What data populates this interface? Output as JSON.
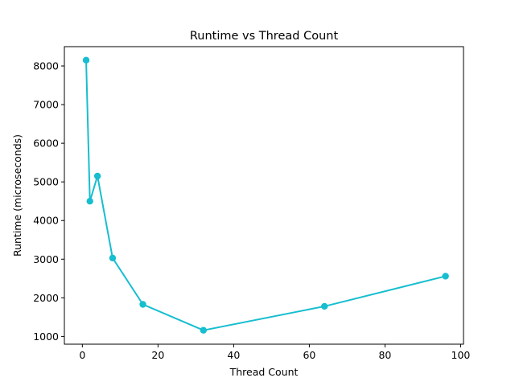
{
  "chart_data": {
    "type": "line",
    "title": "Runtime vs Thread Count",
    "xlabel": "Thread Count",
    "ylabel": "Runtime (microseconds)",
    "xlim": [
      -4.75,
      100.75
    ],
    "ylim": [
      800,
      8500
    ],
    "xticks": [
      0,
      20,
      40,
      60,
      80,
      100
    ],
    "yticks": [
      1000,
      2000,
      3000,
      4000,
      5000,
      6000,
      7000,
      8000
    ],
    "grid": false,
    "series": [
      {
        "color": "#17becf",
        "marker": "circle",
        "x": [
          1,
          2,
          4,
          8,
          16,
          32,
          64,
          96
        ],
        "y": [
          8150,
          4500,
          5150,
          3030,
          1830,
          1160,
          1780,
          2560
        ]
      }
    ]
  }
}
